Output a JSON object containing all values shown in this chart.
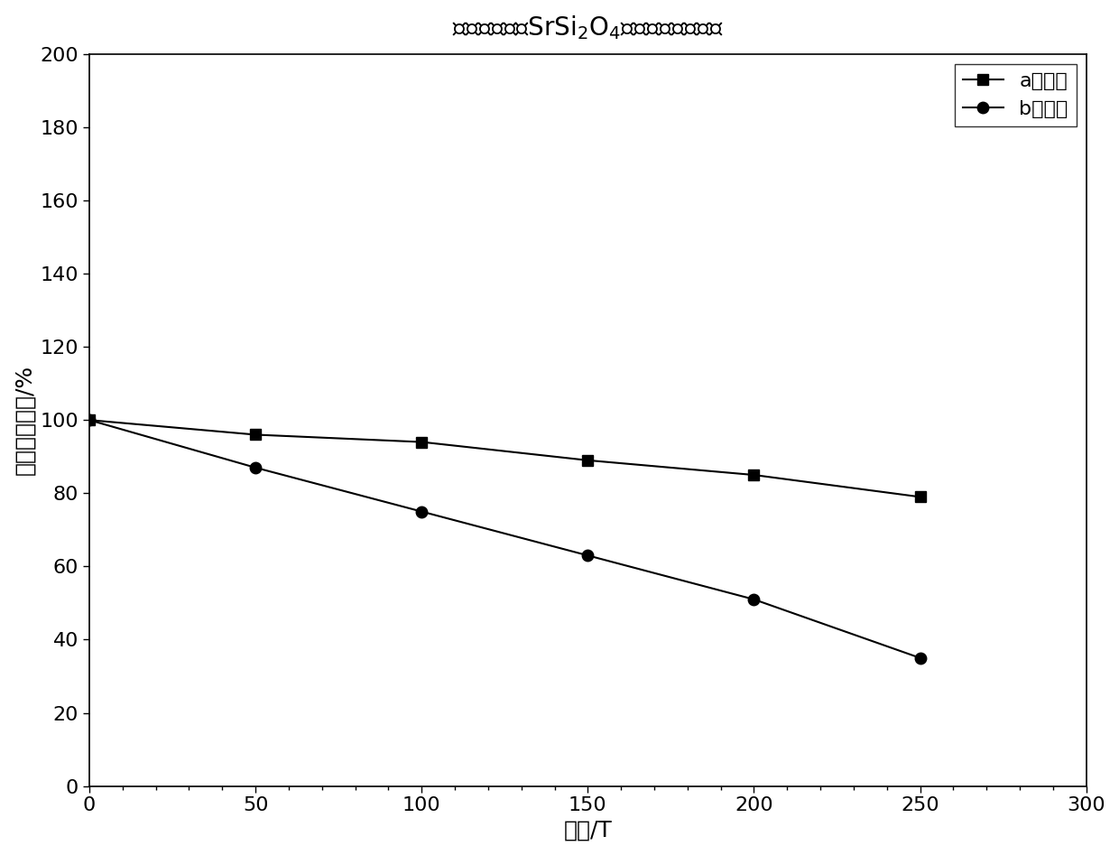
{
  "title": "硅酸盐荧光粉SrSi$_2$O$_4$热依赖光谱对比图",
  "xlabel": "温度/T",
  "ylabel": "相对发光强度/%",
  "xlim": [
    0,
    300
  ],
  "ylim": [
    0,
    200
  ],
  "xticks": [
    0,
    50,
    100,
    150,
    200,
    250,
    300
  ],
  "yticks": [
    0,
    20,
    40,
    60,
    80,
    100,
    120,
    140,
    160,
    180,
    200
  ],
  "series_a": {
    "x": [
      0,
      50,
      100,
      150,
      200,
      250
    ],
    "y": [
      100,
      96,
      94,
      89,
      85,
      79
    ],
    "label": "a包膜后",
    "marker": "s",
    "color": "#000000",
    "linewidth": 1.5,
    "markersize": 9
  },
  "series_b": {
    "x": [
      0,
      50,
      100,
      150,
      200,
      250
    ],
    "y": [
      100,
      87,
      75,
      63,
      51,
      35
    ],
    "label": "b未包膜",
    "marker": "o",
    "color": "#000000",
    "linewidth": 1.5,
    "markersize": 9
  },
  "font_size_title": 20,
  "font_size_label": 18,
  "font_size_tick": 16,
  "font_size_legend": 16,
  "background_color": "#ffffff",
  "figure_width": 12.4,
  "figure_height": 9.47
}
